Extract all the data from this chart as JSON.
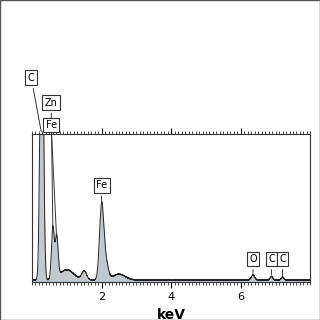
{
  "xlabel": "keV",
  "xlabel_fontsize": 10,
  "xlim": [
    0,
    8.0
  ],
  "ylim": [
    0,
    1.0
  ],
  "background_color": "#ffffff",
  "fill_color": "#c0c8d0",
  "line_color": "#222222",
  "tick_label_fontsize": 8,
  "xticks": [
    2,
    4,
    6
  ],
  "figsize": [
    3.2,
    3.2
  ],
  "dpi": 100
}
